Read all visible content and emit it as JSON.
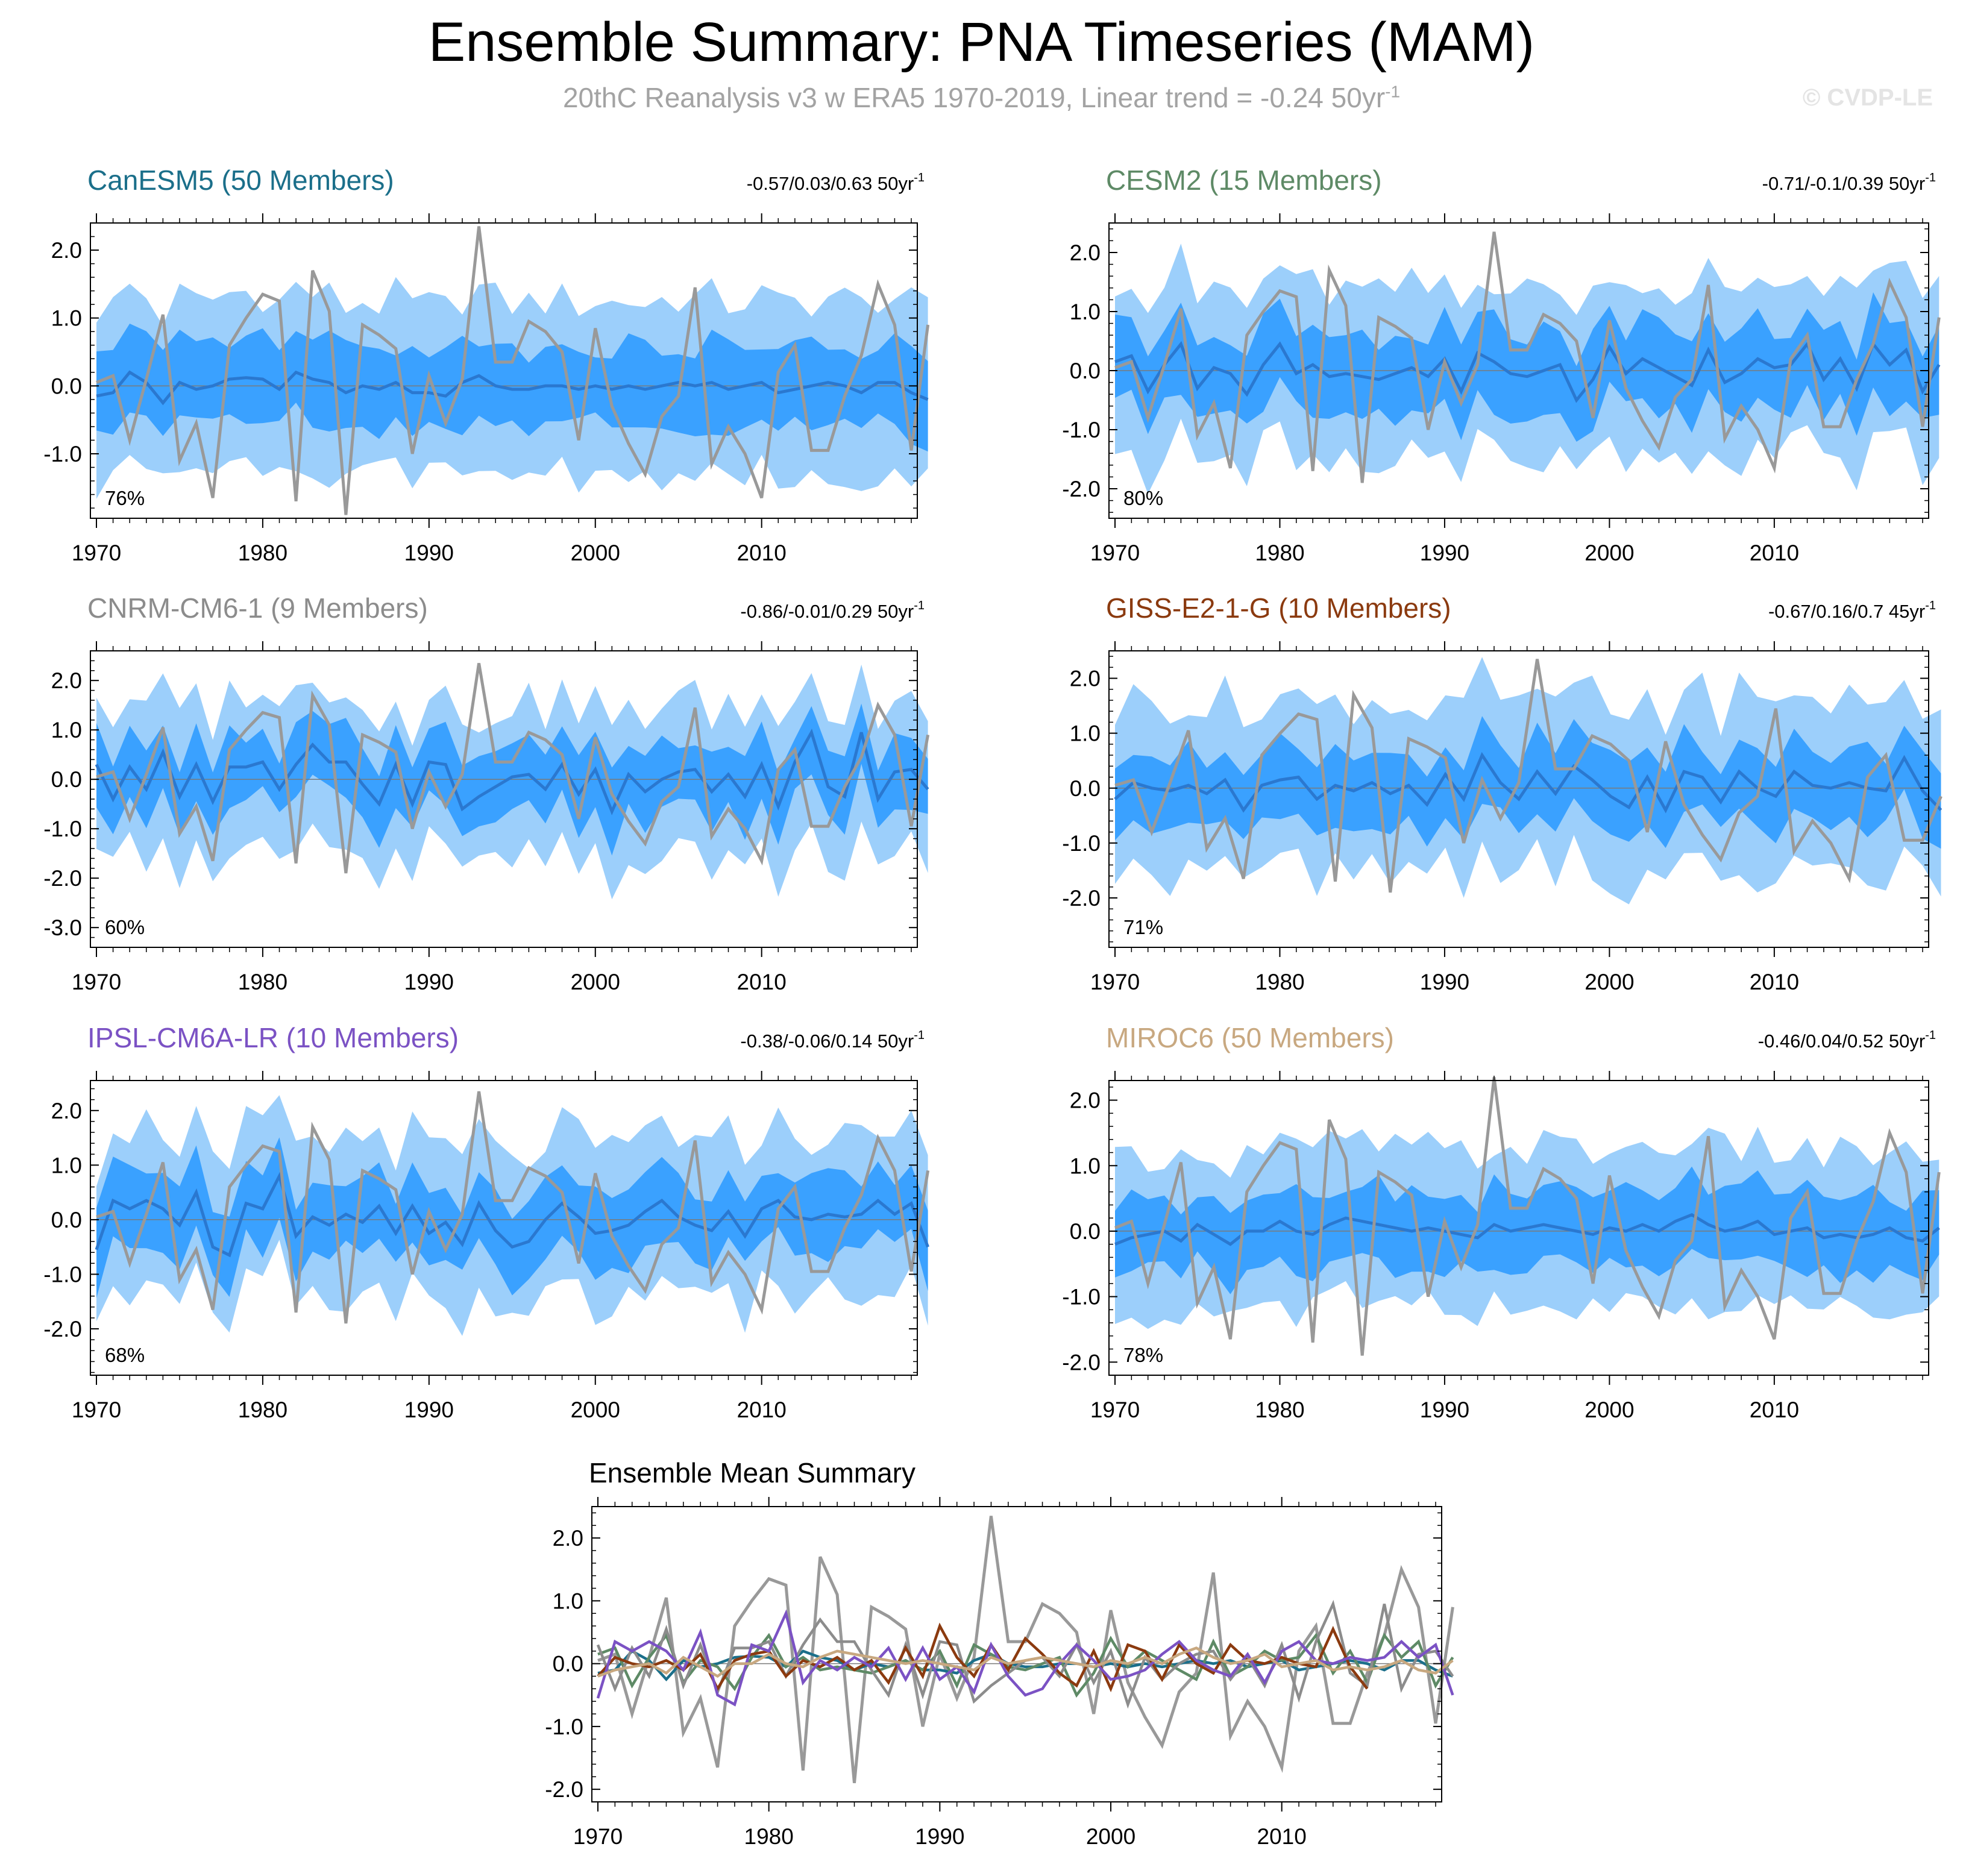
{
  "page": {
    "title": "Ensemble Summary: PNA Timeseries (MAM)",
    "subtitle": "20thC Reanalysis v3 w ERA5 1970-2019, Linear trend = -0.24 50yr",
    "subtitle_sup": "-1",
    "watermark": "© CVDP-LE"
  },
  "chart_data": {
    "type": "line",
    "x_start": 1970,
    "observed": {
      "name": "20thC Reanalysis v3 w ERA5",
      "color": "#999999",
      "values": [
        0.05,
        0.15,
        -0.8,
        0.1,
        1.05,
        -1.1,
        -0.55,
        -1.65,
        0.6,
        1.0,
        1.35,
        1.25,
        -1.7,
        1.7,
        1.1,
        -1.9,
        0.9,
        0.75,
        0.55,
        -1.0,
        0.15,
        -0.55,
        0.1,
        2.35,
        0.35,
        0.35,
        0.95,
        0.8,
        0.5,
        -0.8,
        0.85,
        -0.3,
        -0.85,
        -1.3,
        -0.45,
        -0.15,
        1.45,
        -1.15,
        -0.6,
        -1.0,
        -1.65,
        0.2,
        0.6,
        -0.95,
        -0.95,
        -0.15,
        0.45,
        1.5,
        0.9,
        -0.95,
        0.9
      ]
    },
    "panels": [
      {
        "title": "CanESM5 (50 Members)",
        "title_color": "#1b6f8a",
        "trend_text": "-0.57/0.03/0.63 50yr",
        "percent": "76%",
        "y_ticks": [
          "2.0",
          "1.0",
          "0.0",
          "-1.0"
        ],
        "y_tick_values": [
          2,
          1,
          0,
          -1
        ],
        "ylim": [
          -1.95,
          2.4
        ],
        "x_ticks": [
          "1970",
          "1980",
          "1990",
          "2000",
          "2010"
        ],
        "n_years": 50,
        "ensemble_mean": [
          -0.15,
          -0.1,
          0.2,
          0.05,
          -0.25,
          0.05,
          -0.05,
          0.0,
          0.1,
          0.12,
          0.1,
          -0.05,
          0.2,
          0.1,
          0.05,
          -0.1,
          0.0,
          -0.05,
          0.05,
          -0.1,
          -0.1,
          -0.15,
          0.05,
          0.15,
          0.0,
          -0.05,
          -0.05,
          0.0,
          0.0,
          -0.05,
          0.0,
          -0.05,
          0.0,
          -0.05,
          0.0,
          0.05,
          0.0,
          0.05,
          -0.05,
          0.0,
          0.05,
          -0.1,
          -0.05,
          0.0,
          0.05,
          0.0,
          -0.1,
          0.05,
          0.05,
          -0.1,
          -0.2
        ],
        "inner_spread": 0.65,
        "outer_spread": 1.3
      },
      {
        "title": "CESM2 (15 Members)",
        "title_color": "#5e8a66",
        "trend_text": "-0.71/-0.1/0.39 50yr",
        "percent": "80%",
        "y_ticks": [
          "2.0",
          "1.0",
          "0.0",
          "-1.0",
          "-2.0"
        ],
        "y_tick_values": [
          2,
          1,
          0,
          -1,
          -2
        ],
        "ylim": [
          -2.5,
          2.5
        ],
        "x_ticks": [
          "1970",
          "1980",
          "1990",
          "2000",
          "2010"
        ],
        "n_years": 50,
        "ensemble_mean": [
          0.15,
          0.25,
          -0.35,
          0.1,
          0.45,
          -0.3,
          0.05,
          -0.05,
          -0.4,
          0.1,
          0.45,
          -0.05,
          0.1,
          -0.1,
          -0.05,
          -0.1,
          -0.15,
          -0.05,
          0.05,
          -0.1,
          0.2,
          -0.35,
          0.3,
          0.15,
          -0.05,
          -0.1,
          0.0,
          0.1,
          -0.5,
          -0.15,
          0.4,
          -0.05,
          0.2,
          0.05,
          -0.1,
          -0.25,
          0.35,
          -0.2,
          -0.05,
          0.2,
          0.05,
          0.1,
          0.45,
          -0.15,
          0.2,
          -0.3,
          0.45,
          0.1,
          0.35,
          -0.35,
          0.1
        ],
        "inner_spread": 0.75,
        "outer_spread": 1.45
      },
      {
        "title": "CNRM-CM6-1 (9 Members)",
        "title_color": "#8c8c8c",
        "trend_text": "-0.86/-0.01/0.29 50yr",
        "percent": "60%",
        "y_ticks": [
          "2.0",
          "1.0",
          "0.0",
          "-1.0",
          "-2.0",
          "-3.0"
        ],
        "y_tick_values": [
          2,
          1,
          0,
          -1,
          -2,
          -3
        ],
        "ylim": [
          -3.4,
          2.6
        ],
        "x_ticks": [
          "1970",
          "1980",
          "1990",
          "2000",
          "2010"
        ],
        "n_years": 50,
        "ensemble_mean": [
          0.3,
          -0.4,
          0.25,
          -0.2,
          0.55,
          -0.35,
          0.3,
          -0.45,
          0.25,
          0.25,
          0.35,
          -0.2,
          0.3,
          0.7,
          0.35,
          0.35,
          -0.1,
          -0.5,
          0.3,
          -0.5,
          0.35,
          0.3,
          -0.6,
          -0.35,
          -0.15,
          0.05,
          0.1,
          -0.2,
          0.3,
          -0.3,
          0.2,
          -0.65,
          0.1,
          -0.25,
          0.0,
          0.15,
          0.2,
          -0.25,
          0.1,
          -0.35,
          0.3,
          -0.55,
          0.35,
          0.95,
          -0.15,
          -0.35,
          0.95,
          -0.4,
          0.15,
          0.2,
          -0.2
        ],
        "inner_spread": 0.75,
        "outer_spread": 1.55
      },
      {
        "title": "GISS-E2-1-G (10 Members)",
        "title_color": "#8b3a0f",
        "trend_text": "-0.67/0.16/0.7 45yr",
        "percent": "71%",
        "y_ticks": [
          "2.0",
          "1.0",
          "0.0",
          "-1.0",
          "-2.0"
        ],
        "y_tick_values": [
          2,
          1,
          0,
          -1,
          -2
        ],
        "ylim": [
          -2.9,
          2.5
        ],
        "x_ticks": [
          "1970",
          "1980",
          "1990",
          "2000",
          "2010"
        ],
        "n_years": 45,
        "ensemble_mean": [
          -0.2,
          0.1,
          0.0,
          -0.05,
          0.05,
          -0.1,
          0.15,
          -0.4,
          0.05,
          0.15,
          0.2,
          -0.2,
          0.05,
          -0.05,
          0.1,
          -0.1,
          0.05,
          -0.3,
          0.25,
          -0.2,
          0.6,
          0.1,
          -0.2,
          0.3,
          -0.1,
          0.4,
          0.15,
          -0.15,
          -0.35,
          0.2,
          -0.4,
          0.3,
          0.2,
          -0.25,
          0.3,
          0.0,
          -0.15,
          0.3,
          0.05,
          0.0,
          0.1,
          0.0,
          -0.05,
          0.55,
          -0.05,
          -0.4
        ],
        "inner_spread": 0.75,
        "outer_spread": 1.6
      },
      {
        "title": "IPSL-CM6A-LR (10 Members)",
        "title_color": "#7b52c4",
        "trend_text": "-0.38/-0.06/0.14 50yr",
        "percent": "68%",
        "y_ticks": [
          "2.0",
          "1.0",
          "0.0",
          "-1.0",
          "-2.0"
        ],
        "y_tick_values": [
          2,
          1,
          0,
          -1,
          -2
        ],
        "ylim": [
          -2.85,
          2.55
        ],
        "x_ticks": [
          "1970",
          "1980",
          "1990",
          "2000",
          "2010"
        ],
        "n_years": 50,
        "ensemble_mean": [
          -0.55,
          0.35,
          0.2,
          0.35,
          0.2,
          -0.1,
          0.5,
          -0.5,
          -0.65,
          0.3,
          0.2,
          0.8,
          -0.3,
          0.05,
          -0.1,
          0.1,
          -0.05,
          0.25,
          -0.25,
          0.25,
          -0.25,
          -0.05,
          -0.45,
          0.3,
          -0.2,
          -0.5,
          -0.4,
          0.0,
          0.3,
          0.05,
          -0.25,
          -0.2,
          -0.1,
          0.15,
          0.35,
          0.05,
          -0.1,
          -0.2,
          0.15,
          -0.3,
          0.2,
          0.35,
          0.05,
          0.0,
          0.1,
          0.05,
          0.1,
          0.35,
          0.1,
          0.3,
          -0.5
        ],
        "inner_spread": 0.75,
        "outer_spread": 1.5
      },
      {
        "title": "MIROC6 (50 Members)",
        "title_color": "#c8a880",
        "trend_text": "-0.46/0.04/0.52 50yr",
        "percent": "78%",
        "y_ticks": [
          "2.0",
          "1.0",
          "0.0",
          "-1.0",
          "-2.0"
        ],
        "y_tick_values": [
          2,
          1,
          0,
          -1,
          -2
        ],
        "ylim": [
          -2.2,
          2.3
        ],
        "x_ticks": [
          "1970",
          "1980",
          "1990",
          "2000",
          "2010"
        ],
        "n_years": 50,
        "ensemble_mean": [
          -0.2,
          -0.1,
          -0.05,
          0.0,
          -0.15,
          0.1,
          -0.05,
          -0.2,
          0.0,
          0.0,
          0.15,
          0.0,
          -0.05,
          0.1,
          0.2,
          0.15,
          0.1,
          0.05,
          0.0,
          0.05,
          0.0,
          -0.05,
          -0.1,
          0.1,
          0.0,
          0.05,
          0.1,
          0.05,
          0.0,
          -0.05,
          0.05,
          0.0,
          0.1,
          0.0,
          0.15,
          0.25,
          0.1,
          0.0,
          0.05,
          0.15,
          -0.05,
          0.0,
          0.05,
          -0.1,
          -0.05,
          -0.1,
          -0.05,
          0.05,
          -0.1,
          -0.15,
          0.05
        ],
        "inner_spread": 0.65,
        "outer_spread": 1.25
      }
    ],
    "summary": {
      "title": "Ensemble Mean Summary",
      "y_ticks": [
        "2.0",
        "1.0",
        "0.0",
        "-1.0",
        "-2.0"
      ],
      "y_tick_values": [
        2,
        1,
        0,
        -1,
        -2
      ],
      "ylim": [
        -2.2,
        2.5
      ],
      "x_ticks": [
        "1970",
        "1980",
        "1990",
        "2000",
        "2010"
      ]
    }
  }
}
